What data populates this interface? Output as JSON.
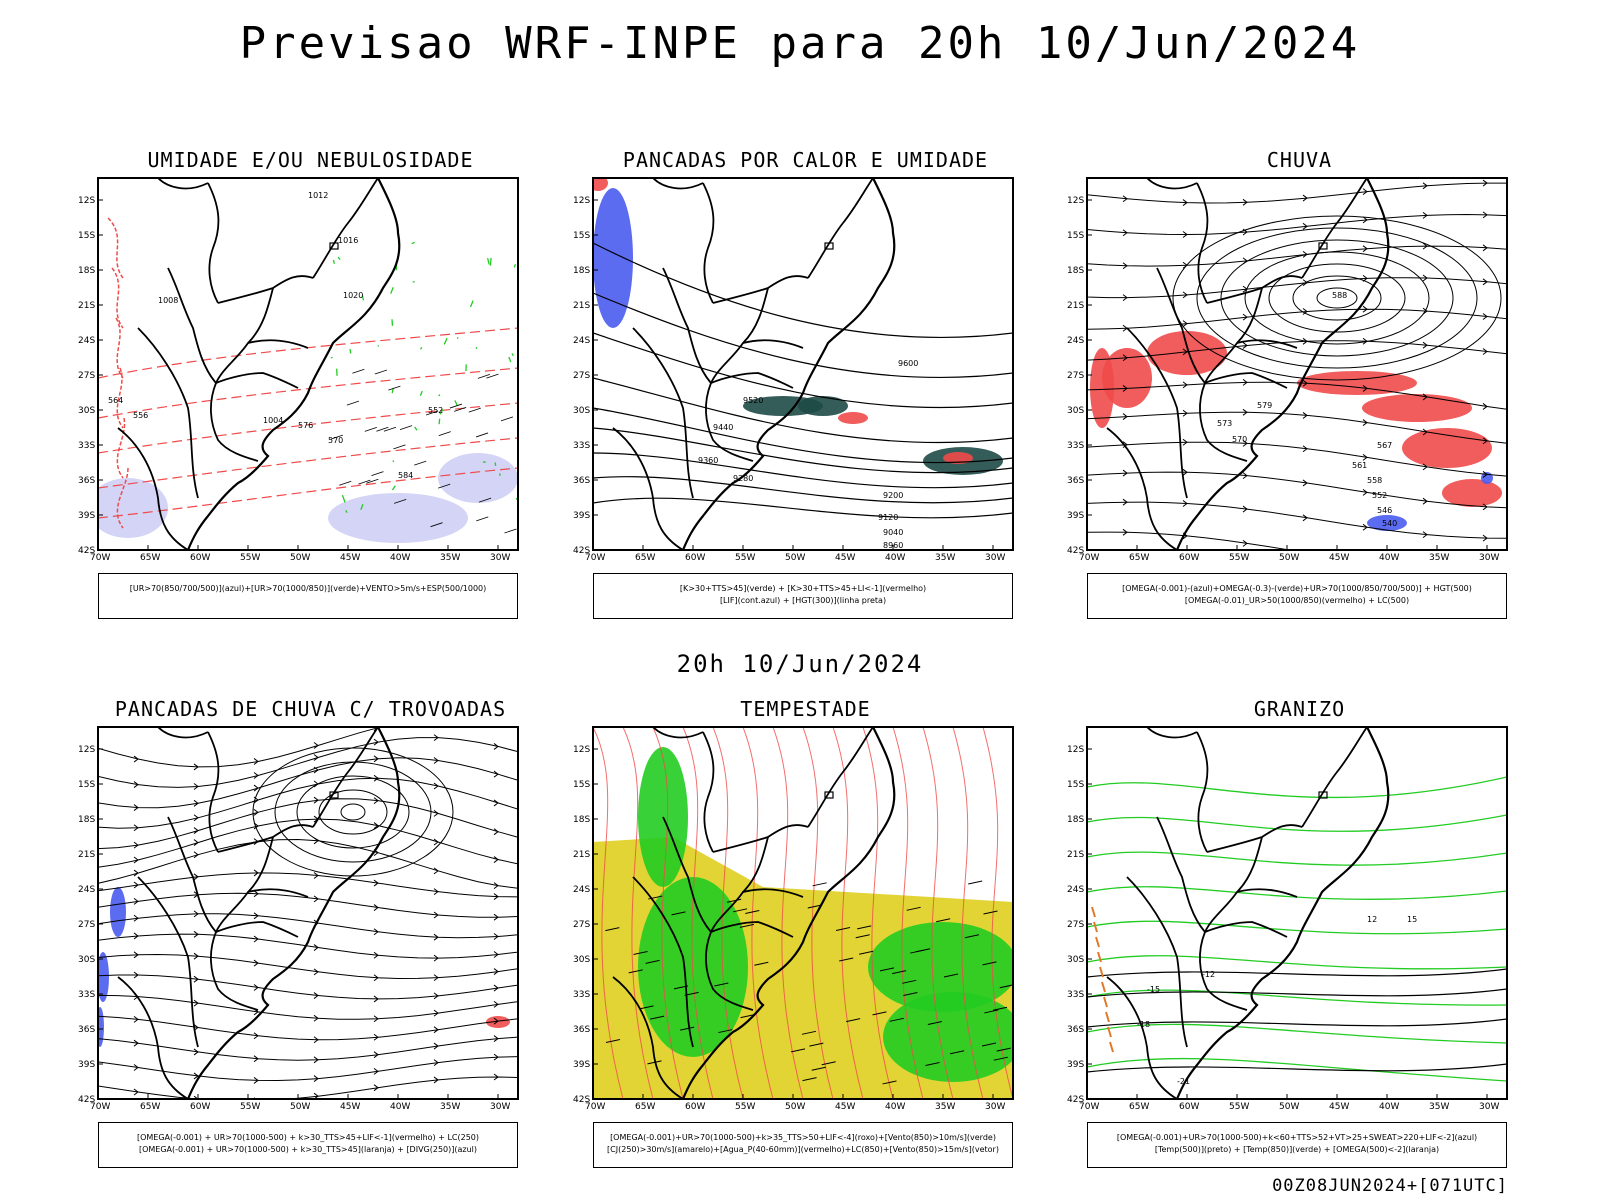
{
  "header": {
    "title": "Previsao WRF-INPE  para 20h 10/Jun/2024"
  },
  "middle": {
    "subtitle": "20h 10/Jun/2024"
  },
  "footer": {
    "run_label": "00Z08JUN2024+[071UTC]"
  },
  "axes": {
    "lon_labels": [
      "70W",
      "65W",
      "60W",
      "55W",
      "50W",
      "45W",
      "40W",
      "35W",
      "30W"
    ],
    "lat_labels": [
      "12S",
      "15S",
      "18S",
      "21S",
      "24S",
      "27S",
      "30S",
      "33S",
      "36S",
      "39S",
      "42S"
    ]
  },
  "colors": {
    "blue": "#4a5cf0",
    "green": "#22cc22",
    "red": "#f04a4a",
    "yellow": "#e0d22a",
    "lightblue": "#b8b8f0",
    "darkteal": "#1e4a46",
    "orange": "#e07a2a",
    "purple": "#7a2ac8"
  },
  "panels": [
    {
      "title": "UMIDADE E/OU NEBULOSIDADE",
      "legend": [
        "[UR>70(850/700/500)](azul)+[UR>70(1000/850)](verde)+VENTO>5m/s+ESP(500/1000)"
      ],
      "contour_labels": [
        "1012",
        "1016",
        "1020",
        "1008",
        "1004",
        "552",
        "556",
        "564",
        "576",
        "570",
        "584"
      ]
    },
    {
      "title": "PANCADAS POR CALOR E UMIDADE",
      "legend": [
        "[K>30+TTS>45](verde) + [K>30+TTS>45+LI<-1](vermelho)",
        "[LIF](cont.azul) + [HGT(300)](linha preta)"
      ],
      "contour_labels": [
        "9600",
        "9520",
        "9440",
        "9360",
        "9280",
        "9200",
        "9120",
        "9040",
        "8960"
      ]
    },
    {
      "title": "CHUVA",
      "legend": [
        "[OMEGA(-0.001)-(azul)+OMEGA(-0.3)-(verde)+UR>70(1000/850/700/500)] + HGT(500)",
        "[OMEGA(-0.01)_UR>50(1000/850)(vermelho) + LC(500)"
      ],
      "contour_labels": [
        "588",
        "579",
        "573",
        "570",
        "567",
        "561",
        "558",
        "552",
        "546",
        "540"
      ]
    },
    {
      "title": "PANCADAS DE CHUVA C/ TROVOADAS",
      "legend": [
        "[OMEGA(-0.001) + UR>70(1000-500) + k>30_TTS>45+LIF<-1](vermelho) + LC(250)",
        "[OMEGA(-0.001) + UR>70(1000-500) + k>30_TTS>45](laranja) + [DIVG(250)](azul)"
      ],
      "contour_labels": []
    },
    {
      "title": "TEMPESTADE",
      "legend": [
        "[OMEGA(-0.001)+UR>70(1000-500)+k>35_TTS>50+LIF<-4](roxo)+[Vento(850)>10m/s](verde)",
        "[CJ(250)>30m/s](amarelo)+[Agua_P(40-60mm)](vermelho)+LC(850)+[Vento(850)>15m/s](vetor)"
      ],
      "contour_labels": []
    },
    {
      "title": "GRANIZO",
      "legend": [
        "[OMEGA(-0.001)+UR>70(1000-500)+k<60+TTS>52+VT>25+SWEAT>220+LIF<-2](azul)",
        "[Temp(500)](preto) + [Temp(850)](verde) + [OMEGA(500)<-2](laranja)"
      ],
      "contour_labels": [
        "-12",
        "-15",
        "-18",
        "-21",
        "12",
        "15"
      ]
    }
  ]
}
